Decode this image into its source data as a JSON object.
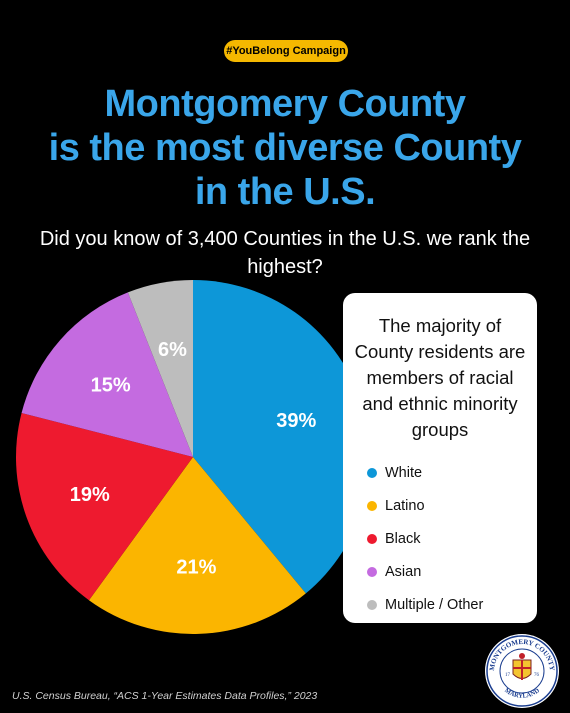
{
  "campaign_tag": "#YouBelong Campaign",
  "headline": {
    "line1": "Montgomery County",
    "line2": "is the most diverse County",
    "line3": "in the U.S."
  },
  "subtitle": "Did you know of 3,400 Counties in the U.S. we rank the highest?",
  "info_card": {
    "text": "The majority of County residents are members of racial and ethnic minority groups"
  },
  "chart_data": {
    "type": "pie",
    "categories": [
      "White",
      "Latino",
      "Black",
      "Asian",
      "Multiple / Other"
    ],
    "values": [
      39,
      21,
      19,
      15,
      6
    ],
    "labels": [
      "39%",
      "21%",
      "19%",
      "15%",
      "6%"
    ],
    "colors": [
      "#0d97d8",
      "#fbb500",
      "#ee1a2f",
      "#c46be0",
      "#bdbdbd"
    ],
    "start": "12 o'clock, clockwise",
    "legend_position": "right"
  },
  "source": "U.S. Census Bureau, “ACS 1-Year Estimates Data Profiles,” 2023",
  "seal": {
    "top_text": "MONTGOMERY COUNTY",
    "bottom_text": "MARYLAND",
    "year_left": "17",
    "year_right": "76"
  }
}
